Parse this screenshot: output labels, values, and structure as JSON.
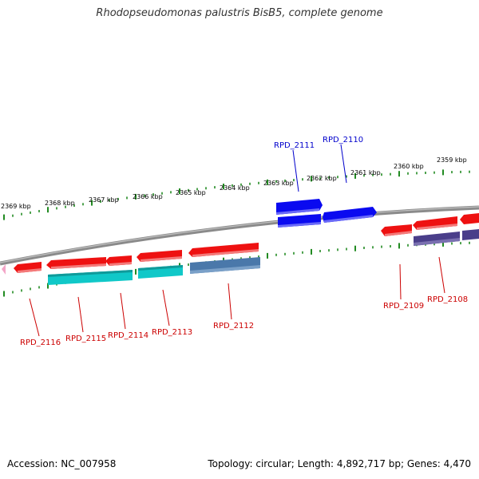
{
  "title": "Rhodopseudomonas palustris BisB5, complete genome",
  "footer": {
    "accession": "Accession: NC_007958",
    "topology": "Topology: circular; Length: 4,892,717 bp; Genes: 4,470"
  },
  "colors": {
    "backbone": "#8a8a8a",
    "tick": "#228b22",
    "forward_label": "#0000cc",
    "reverse_label": "#cc0000",
    "cds_red": "#ee1111",
    "cds_blue": "#0a0af0",
    "cds_cyan": "#10c8c8",
    "cds_steel": "#4a78aa",
    "cds_purple": "#4a3e8a",
    "cds_pink": "#f4a6c8"
  },
  "scale_labels": [
    "2369 kbp",
    "2368 kbp",
    "2367 kbp",
    "2366 kbp",
    "2365 kbp",
    "2364 kbp",
    "2363 kbp",
    "2362 kbp",
    "2361 kbp",
    "2360 kbp",
    "2359 kbp"
  ],
  "gene_labels": [
    "RPD_2111",
    "RPD_2110",
    "RPD_2116",
    "RPD_2115",
    "RPD_2114",
    "RPD_2113",
    "RPD_2112",
    "RPD_2109",
    "RPD_2108"
  ]
}
